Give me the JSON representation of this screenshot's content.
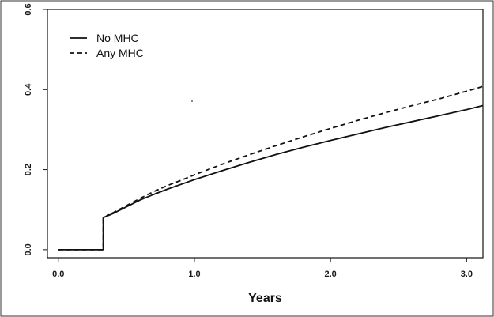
{
  "chart_data": {
    "type": "line",
    "title": "",
    "xlabel": "Years",
    "ylabel": "",
    "xlim": [
      -0.08,
      3.12
    ],
    "ylim": [
      -0.02,
      0.6
    ],
    "x_ticks": [
      0.0,
      1.0,
      2.0,
      3.0
    ],
    "x_tick_labels": [
      "0.0",
      "1.0",
      "2.0",
      "3.0"
    ],
    "y_ticks": [
      0.0,
      0.2,
      0.4,
      0.6
    ],
    "y_tick_labels": [
      "0.0",
      "0.2",
      "0.4",
      "0.6"
    ],
    "legend_position": "top-left",
    "grid": false,
    "series": [
      {
        "name": "No MHC",
        "line_style": "solid",
        "color": "#111111",
        "points": [
          [
            0.0,
            0.0
          ],
          [
            0.33,
            0.0
          ],
          [
            0.33,
            0.08
          ],
          [
            0.4,
            0.09
          ],
          [
            0.5,
            0.107
          ],
          [
            0.6,
            0.124
          ],
          [
            0.7,
            0.138
          ],
          [
            0.8,
            0.151
          ],
          [
            0.9,
            0.163
          ],
          [
            1.0,
            0.175
          ],
          [
            1.2,
            0.197
          ],
          [
            1.4,
            0.218
          ],
          [
            1.6,
            0.238
          ],
          [
            1.8,
            0.256
          ],
          [
            2.0,
            0.273
          ],
          [
            2.2,
            0.289
          ],
          [
            2.4,
            0.305
          ],
          [
            2.6,
            0.32
          ],
          [
            2.8,
            0.335
          ],
          [
            3.0,
            0.35
          ],
          [
            3.12,
            0.36
          ]
        ]
      },
      {
        "name": "Any MHC",
        "line_style": "dashed",
        "color": "#111111",
        "points": [
          [
            0.0,
            0.0
          ],
          [
            0.33,
            0.0
          ],
          [
            0.33,
            0.08
          ],
          [
            0.4,
            0.092
          ],
          [
            0.5,
            0.11
          ],
          [
            0.6,
            0.128
          ],
          [
            0.7,
            0.145
          ],
          [
            0.8,
            0.16
          ],
          [
            0.9,
            0.173
          ],
          [
            1.0,
            0.187
          ],
          [
            1.2,
            0.213
          ],
          [
            1.4,
            0.237
          ],
          [
            1.6,
            0.26
          ],
          [
            1.8,
            0.282
          ],
          [
            2.0,
            0.303
          ],
          [
            2.2,
            0.323
          ],
          [
            2.4,
            0.342
          ],
          [
            2.6,
            0.36
          ],
          [
            2.8,
            0.377
          ],
          [
            3.0,
            0.396
          ],
          [
            3.12,
            0.408
          ]
        ]
      }
    ]
  }
}
